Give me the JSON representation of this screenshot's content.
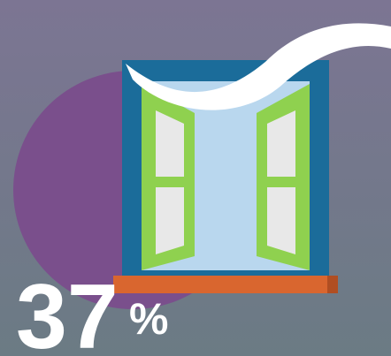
{
  "stat": {
    "number": "37",
    "unit": "%"
  }
}
